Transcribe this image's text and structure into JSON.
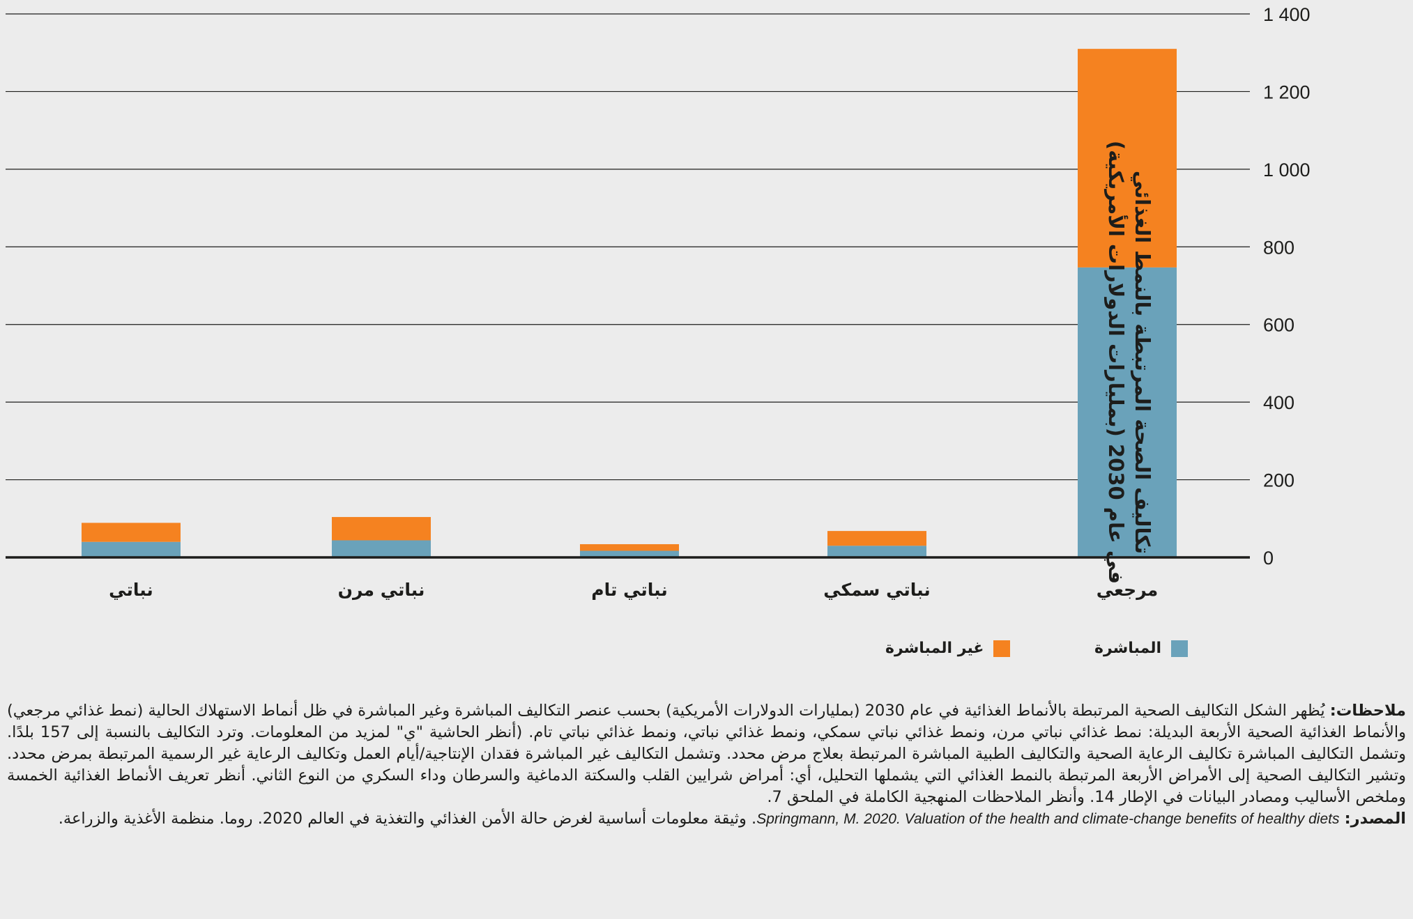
{
  "chart_data": {
    "type": "bar",
    "stacked": true,
    "categories": [
      "مرجعي",
      "نباتي سمكي",
      "نباتي تام",
      "نباتي مرن",
      "نباتي"
    ],
    "series": [
      {
        "name": "المباشرة",
        "color": "#6aa2ba",
        "values": [
          747,
          30,
          17,
          44,
          40
        ]
      },
      {
        "name": "غير المباشرة",
        "color": "#f58220",
        "values": [
          563,
          38,
          17,
          60,
          49
        ]
      }
    ],
    "yticks": [
      "0",
      "200",
      "400",
      "600",
      "800",
      "1 000",
      "1 200",
      "1 400"
    ],
    "ylim": [
      0,
      1400
    ],
    "ylabel_line1": "تكاليف الصحة المرتبطة بالنمط الغذائي",
    "ylabel_line2": "في عام 2030 (بمليارات الدولارات الأمريكية)",
    "grid": true,
    "legend_position": "bottom"
  },
  "notes": {
    "label": "ملاحظات:",
    "text": " يُظهر الشكل التكاليف الصحية المرتبطة بالأنماط الغذائية في عام 2030 (بمليارات الدولارات الأمريكية) بحسب عنصر التكاليف المباشرة وغير المباشرة في ظل أنماط الاستهلاك الحالية (نمط غذائي مرجعي) والأنماط الغذائية الصحية الأربعة البديلة: نمط غذائي نباتي مرن، ونمط غذائي نباتي سمكي، ونمط غذائي نباتي، ونمط غذائي نباتي تام. (أنظر الحاشية \"ي\" لمزيد من المعلومات. وترد التكاليف بالنسبة إلى 157 بلدًا. وتشمل التكاليف المباشرة تكاليف الرعاية الصحية والتكاليف الطبية المباشرة المرتبطة بعلاج مرض محدد. وتشمل التكاليف غير المباشرة فقدان الإنتاجية/أيام العمل وتكاليف الرعاية غير الرسمية المرتبطة بمرض محدد. وتشير التكاليف الصحية إلى الأمراض الأربعة المرتبطة بالنمط الغذائي التي يشملها التحليل، أي: أمراض شرايين القلب والسكتة الدماغية والسرطان وداء السكري من النوع الثاني. أنظر تعريف الأنماط الغذائية الخمسة وملخص الأساليب ومصادر البيانات في الإطار 14. وأنظر الملاحظات المنهجية الكاملة في الملحق 7."
  },
  "source": {
    "label": "المصدر:",
    "english": "Springmann, M. 2020. Valuation of the health and climate-change benefits of healthy diets",
    "text": ". وثيقة معلومات أساسية لغرض حالة الأمن الغذائي والتغذية في العالم 2020. روما. منظمة الأغذية والزراعة."
  }
}
